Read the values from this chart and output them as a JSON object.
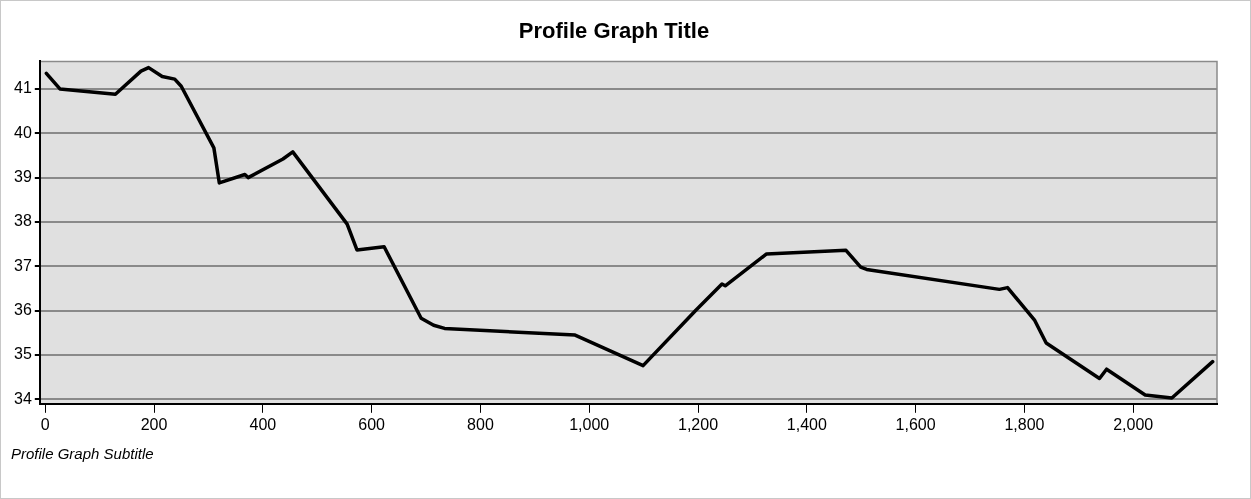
{
  "chart_data": {
    "type": "line",
    "title": "Profile Graph Title",
    "subtitle": "Profile Graph Subtitle",
    "x": [
      2,
      27,
      129,
      176,
      190,
      215,
      238,
      250,
      310,
      320,
      367,
      373,
      437,
      455,
      555,
      573,
      623,
      691,
      714,
      734,
      974,
      1099,
      1196,
      1244,
      1250,
      1326,
      1472,
      1499,
      1510,
      1754,
      1769,
      1819,
      1840,
      1938,
      1951,
      2022,
      2071,
      2146
    ],
    "series": [
      {
        "color": "#000000",
        "values": [
          41.35,
          41.0,
          40.88,
          41.4,
          41.48,
          41.28,
          41.22,
          41.06,
          39.67,
          38.88,
          39.07,
          39.0,
          39.42,
          39.58,
          37.95,
          37.37,
          37.44,
          35.83,
          35.67,
          35.6,
          35.45,
          34.76,
          36.01,
          36.6,
          36.56,
          37.28,
          37.36,
          36.98,
          36.93,
          36.48,
          36.52,
          35.78,
          35.27,
          34.47,
          34.68,
          34.1,
          34.03,
          34.85
        ]
      }
    ],
    "xlim": [
      -10,
      2154
    ],
    "ylim": [
      33.9,
      41.62
    ],
    "xticks": [
      0,
      200,
      400,
      600,
      800,
      {
        "value": 1000,
        "label": "1,000"
      },
      {
        "value": 1200,
        "label": "1,200"
      },
      {
        "value": 1400,
        "label": "1,400"
      },
      {
        "value": 1600,
        "label": "1,600"
      },
      {
        "value": 1800,
        "label": "1,800"
      },
      {
        "value": 2000,
        "label": "2,000"
      }
    ],
    "yticks": [
      34,
      35,
      36,
      37,
      38,
      39,
      40,
      41
    ],
    "grid": "y",
    "legend": false,
    "marker": "none",
    "line_style": "solid"
  }
}
